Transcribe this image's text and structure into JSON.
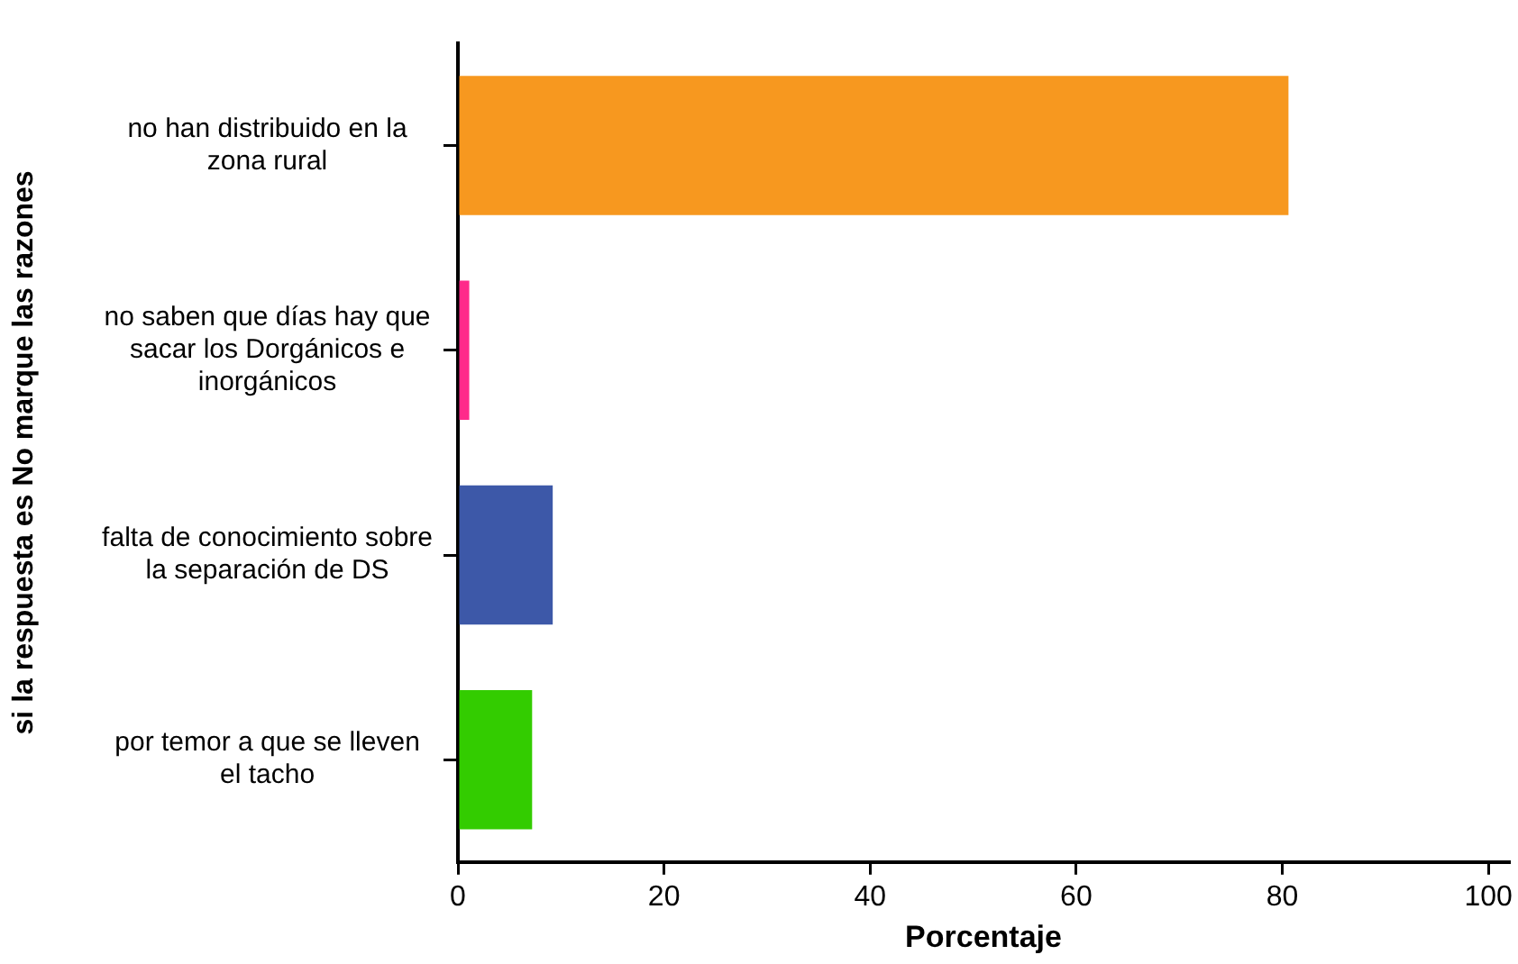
{
  "chart_data": {
    "type": "bar",
    "orientation": "horizontal",
    "categories": [
      "no han distribuido en la zona rural",
      "no saben que días hay que sacar los Dorgánicos e inorgánicos",
      "falta de conocimiento sobre la separación de DS",
      "por temor a que se lleven el tacho"
    ],
    "values": [
      80.6,
      1.1,
      9.2,
      7.2
    ],
    "colors": [
      "#f7981f",
      "#ff2a8a",
      "#3d58a8",
      "#33cc00"
    ],
    "xlabel": "Porcentaje",
    "ylabel": "si la respuesta es No marque las razones",
    "xlim": [
      0,
      102
    ],
    "xticks": [
      0,
      20,
      40,
      60,
      80,
      100
    ],
    "grid": false,
    "legend": false
  }
}
